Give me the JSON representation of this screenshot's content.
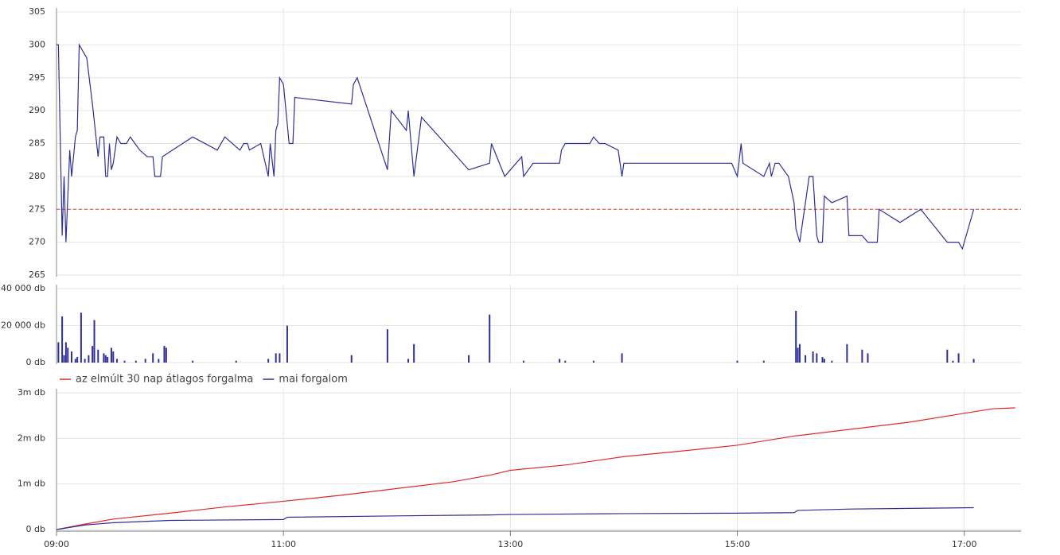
{
  "chart_data": [
    {
      "type": "line",
      "color": "#2e2e96",
      "xlim": [
        "09:00",
        "17:30"
      ],
      "ylim": [
        265,
        305
      ],
      "yticks": [
        265,
        270,
        275,
        280,
        285,
        290,
        295,
        300,
        305
      ],
      "grid": true,
      "reference_line": 275,
      "reference_color": "#e8413c",
      "x": [
        "09:00",
        "09:01",
        "09:03",
        "09:04",
        "09:05",
        "09:07",
        "09:08",
        "09:10",
        "09:11",
        "09:12",
        "09:16",
        "09:19",
        "09:22",
        "09:23",
        "09:25",
        "09:26",
        "09:27",
        "09:28",
        "09:29",
        "09:30",
        "09:32",
        "09:34",
        "09:37",
        "09:39",
        "09:44",
        "09:48",
        "09:51",
        "09:52",
        "09:55",
        "09:56",
        "10:12",
        "10:25",
        "10:29",
        "10:37",
        "10:39",
        "10:41",
        "10:42",
        "10:48",
        "10:52",
        "10:53",
        "10:55",
        "10:56",
        "10:57",
        "10:58",
        "11:00",
        "11:03",
        "11:05",
        "11:06",
        "11:36",
        "11:37",
        "11:39",
        "11:55",
        "11:57",
        "12:05",
        "12:06",
        "12:09",
        "12:13",
        "12:38",
        "12:49",
        "12:50",
        "12:57",
        "13:06",
        "13:07",
        "13:12",
        "13:26",
        "13:27",
        "13:29",
        "13:42",
        "13:44",
        "13:47",
        "13:50",
        "13:57",
        "13:59",
        "14:00",
        "14:57",
        "15:00",
        "15:02",
        "15:03",
        "15:14",
        "15:17",
        "15:18",
        "15:20",
        "15:22",
        "15:27",
        "15:30",
        "15:31",
        "15:33",
        "15:38",
        "15:40",
        "15:42",
        "15:43",
        "15:45",
        "15:46",
        "15:50",
        "15:58",
        "15:59",
        "16:06",
        "16:09",
        "16:14",
        "16:15",
        "16:26",
        "16:37",
        "16:51",
        "16:57",
        "16:59",
        "17:05"
      ],
      "values": [
        300,
        300,
        271,
        280,
        270,
        284,
        280,
        286,
        287,
        300,
        298,
        291,
        283,
        286,
        286,
        280,
        280,
        285,
        281,
        282,
        286,
        285,
        285,
        286,
        284,
        283,
        283,
        280,
        280,
        283,
        286,
        284,
        286,
        284,
        285,
        285,
        284,
        285,
        280,
        285,
        280,
        287,
        288,
        295,
        294,
        285,
        285,
        292,
        291,
        294,
        295,
        281,
        290,
        287,
        290,
        280,
        289,
        281,
        282,
        285,
        280,
        283,
        280,
        282,
        282,
        284,
        285,
        285,
        286,
        285,
        285,
        284,
        280,
        282,
        282,
        280,
        285,
        282,
        280,
        282,
        280,
        282,
        282,
        280,
        276,
        272,
        270,
        280,
        280,
        271,
        270,
        270,
        277,
        276,
        277,
        271,
        271,
        270,
        270,
        275,
        273,
        275,
        270,
        270,
        269,
        275
      ]
    },
    {
      "type": "bar",
      "color": "#2e2e96",
      "xlim": [
        "09:00",
        "17:30"
      ],
      "ylim": [
        0,
        40000
      ],
      "yticks": [
        {
          "value": 0,
          "label": "0 db"
        },
        {
          "value": 20000,
          "label": "20 000 db"
        },
        {
          "value": 40000,
          "label": "40 000 db"
        }
      ],
      "grid": true,
      "x": [
        "09:01",
        "09:03",
        "09:04",
        "09:05",
        "09:06",
        "09:08",
        "09:10",
        "09:11",
        "09:13",
        "09:15",
        "09:17",
        "09:19",
        "09:20",
        "09:22",
        "09:25",
        "09:26",
        "09:27",
        "09:29",
        "09:30",
        "09:32",
        "09:36",
        "09:42",
        "09:47",
        "09:51",
        "09:54",
        "09:57",
        "09:58",
        "10:12",
        "10:35",
        "10:52",
        "10:56",
        "10:58",
        "11:02",
        "11:36",
        "11:55",
        "12:06",
        "12:09",
        "12:38",
        "12:49",
        "13:07",
        "13:26",
        "13:29",
        "13:44",
        "13:59",
        "15:00",
        "15:14",
        "15:31",
        "15:32",
        "15:33",
        "15:36",
        "15:40",
        "15:42",
        "15:45",
        "15:46",
        "15:50",
        "15:58",
        "16:06",
        "16:09",
        "16:51",
        "16:54",
        "16:57",
        "17:05"
      ],
      "values": [
        11000,
        25000,
        4000,
        11000,
        8000,
        6000,
        2000,
        3000,
        27000,
        2000,
        4000,
        9000,
        23000,
        7000,
        5000,
        4000,
        3000,
        8000,
        6000,
        2000,
        1000,
        1000,
        2000,
        5000,
        2000,
        9000,
        8000,
        1000,
        1000,
        2000,
        5000,
        5000,
        20000,
        4000,
        18000,
        2000,
        10000,
        4000,
        26000,
        1000,
        2000,
        1000,
        1000,
        5000,
        1000,
        1000,
        28000,
        8000,
        10000,
        4000,
        6000,
        5000,
        3000,
        2000,
        1000,
        10000,
        7000,
        5000,
        7000,
        1000,
        5000,
        2000
      ]
    },
    {
      "type": "line",
      "xlim": [
        "09:00",
        "17:30"
      ],
      "ylim": [
        0,
        3000000
      ],
      "yticks": [
        {
          "value": 0,
          "label": "0 db"
        },
        {
          "value": 1000000,
          "label": "1m db"
        },
        {
          "value": 2000000,
          "label": "2m db"
        },
        {
          "value": 3000000,
          "label": "3m db"
        }
      ],
      "grid": true,
      "xticks": [
        "09:00",
        "11:00",
        "13:00",
        "15:00",
        "17:00"
      ],
      "series": [
        {
          "name": "az elmúlt 30 nap átlagos forgalma",
          "color": "#e02828",
          "x": [
            "09:00",
            "09:15",
            "09:30",
            "10:00",
            "10:30",
            "11:00",
            "11:30",
            "12:00",
            "12:30",
            "12:50",
            "13:00",
            "13:30",
            "14:00",
            "14:30",
            "15:00",
            "15:30",
            "16:00",
            "16:30",
            "17:00",
            "17:15",
            "17:27"
          ],
          "values": [
            0,
            120000,
            230000,
            360000,
            500000,
            620000,
            750000,
            900000,
            1050000,
            1200000,
            1300000,
            1420000,
            1600000,
            1720000,
            1850000,
            2050000,
            2200000,
            2350000,
            2550000,
            2650000,
            2670000
          ]
        },
        {
          "name": "mai forgalom",
          "color": "#2e2e96",
          "x": [
            "09:00",
            "09:15",
            "09:30",
            "10:00",
            "11:00",
            "11:02",
            "12:00",
            "12:49",
            "13:00",
            "14:00",
            "15:00",
            "15:30",
            "15:32",
            "16:00",
            "17:05"
          ],
          "values": [
            0,
            100000,
            150000,
            200000,
            220000,
            270000,
            300000,
            320000,
            330000,
            350000,
            360000,
            370000,
            420000,
            450000,
            480000
          ]
        }
      ]
    }
  ]
}
